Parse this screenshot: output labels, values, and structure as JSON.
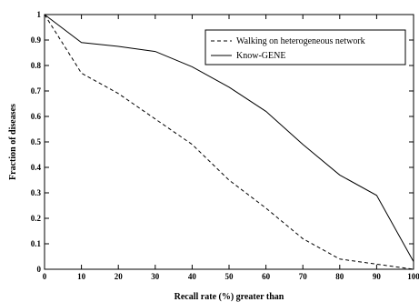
{
  "chart_data": {
    "type": "line",
    "xlabel": "Recall rate (%) greater than",
    "ylabel": "Fraction of diseases",
    "xlim": [
      0,
      100
    ],
    "ylim": [
      0,
      1
    ],
    "x_ticks": [
      "0",
      "10",
      "20",
      "30",
      "40",
      "50",
      "60",
      "70",
      "80",
      "90",
      "100"
    ],
    "y_ticks": [
      "0",
      "0.1",
      "0.2",
      "0.3",
      "0.4",
      "0.5",
      "0.6",
      "0.7",
      "0.8",
      "0.9",
      "1"
    ],
    "x": [
      0,
      10,
      20,
      30,
      40,
      50,
      60,
      70,
      80,
      90,
      100
    ],
    "grid": false,
    "legend_position": "top-right",
    "series": [
      {
        "name": "Walking on heterogeneous network",
        "style": "dashed",
        "color": "#000000",
        "values": [
          1.0,
          0.77,
          0.69,
          0.59,
          0.49,
          0.35,
          0.24,
          0.12,
          0.04,
          0.02,
          0.0
        ]
      },
      {
        "name": "Know-GENE",
        "style": "solid",
        "color": "#000000",
        "values": [
          1.0,
          0.89,
          0.875,
          0.855,
          0.795,
          0.715,
          0.62,
          0.49,
          0.37,
          0.29,
          0.03
        ]
      }
    ]
  }
}
